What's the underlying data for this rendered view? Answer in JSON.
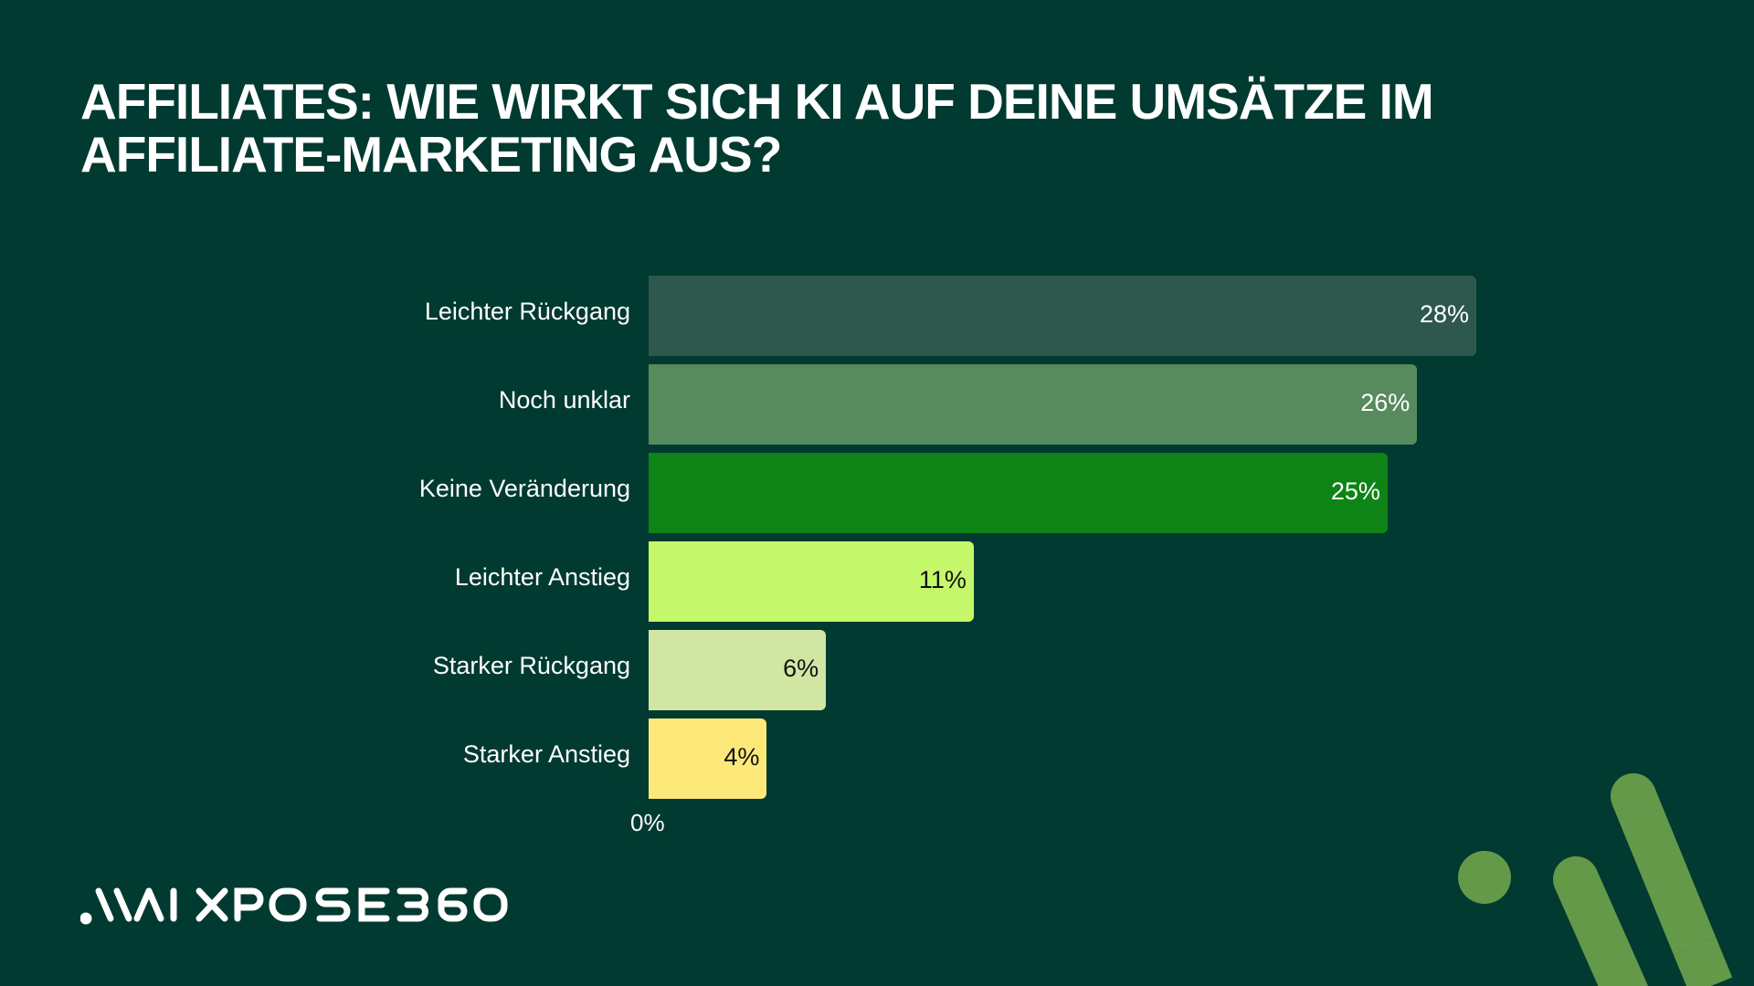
{
  "title": "Affiliates: Wie wirkt sich KI auf deine Umsätze im Affiliate-Marketing aus?",
  "logo_text": ".\\\\/\\I XPOSE360",
  "background": "#003a30",
  "decor_color": "#65994a",
  "chart_data": {
    "type": "bar",
    "orientation": "horizontal",
    "title": "Affiliates: Wie wirkt sich KI auf deine Umsätze im Affiliate-Marketing aus?",
    "categories": [
      "Leichter Rückgang",
      "Noch unklar",
      "Keine Veränderung",
      "Leichter Anstieg",
      "Starker Rückgang",
      "Starker Anstieg"
    ],
    "values": [
      28,
      26,
      25,
      11,
      6,
      4
    ],
    "labels": [
      "28%",
      "26%",
      "25%",
      "11%",
      "6%",
      "4%"
    ],
    "colors": [
      "#2e584e",
      "#578a5c",
      "#0e8417",
      "#c5f76a",
      "#d1e6a3",
      "#fde97a"
    ],
    "label_colors": [
      "#ffffff",
      "#ffffff",
      "#ffffff",
      "#111111",
      "#111111",
      "#111111"
    ],
    "x_tick": "0%",
    "xlim": [
      0,
      28
    ],
    "grid": false
  }
}
